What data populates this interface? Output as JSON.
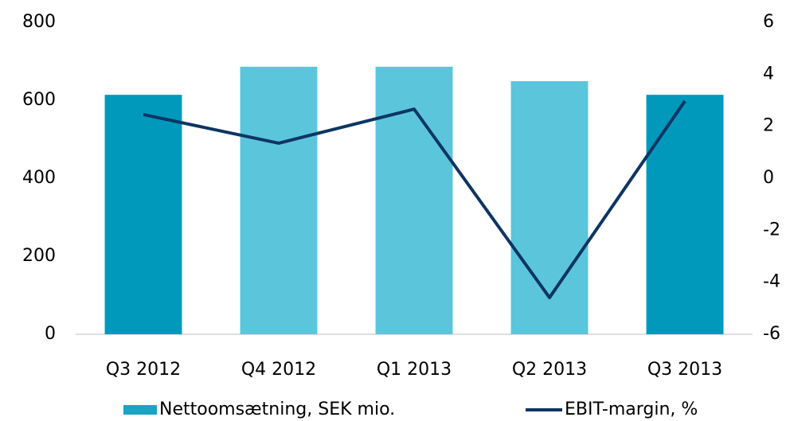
{
  "chart_data": {
    "type": "bar_line",
    "categories": [
      "Q3 2012",
      "Q4 2012",
      "Q1 2013",
      "Q2 2013",
      "Q3 2013"
    ],
    "series": [
      {
        "name": "Nettoomsætning, SEK mio.",
        "type": "bar",
        "color": "#1aa3c5",
        "bar_colors": [
          "#0099bb",
          "#5bc5dc",
          "#5bc5dc",
          "#5bc5dc",
          "#0099bb"
        ],
        "values": [
          614,
          686,
          686,
          649,
          614
        ]
      },
      {
        "name": "EBIT-margin, %",
        "type": "line",
        "axis": "y2",
        "color": "#0d3563",
        "values": [
          2.45,
          1.35,
          2.66,
          -4.59,
          2.97
        ]
      }
    ],
    "ylim": [
      0,
      800
    ],
    "yticks": [
      0,
      200,
      400,
      600,
      800
    ],
    "y2lim": [
      -6,
      6
    ],
    "y2ticks": [
      -6,
      -4,
      -2,
      0,
      2,
      4,
      6
    ],
    "legend": "bottom"
  }
}
